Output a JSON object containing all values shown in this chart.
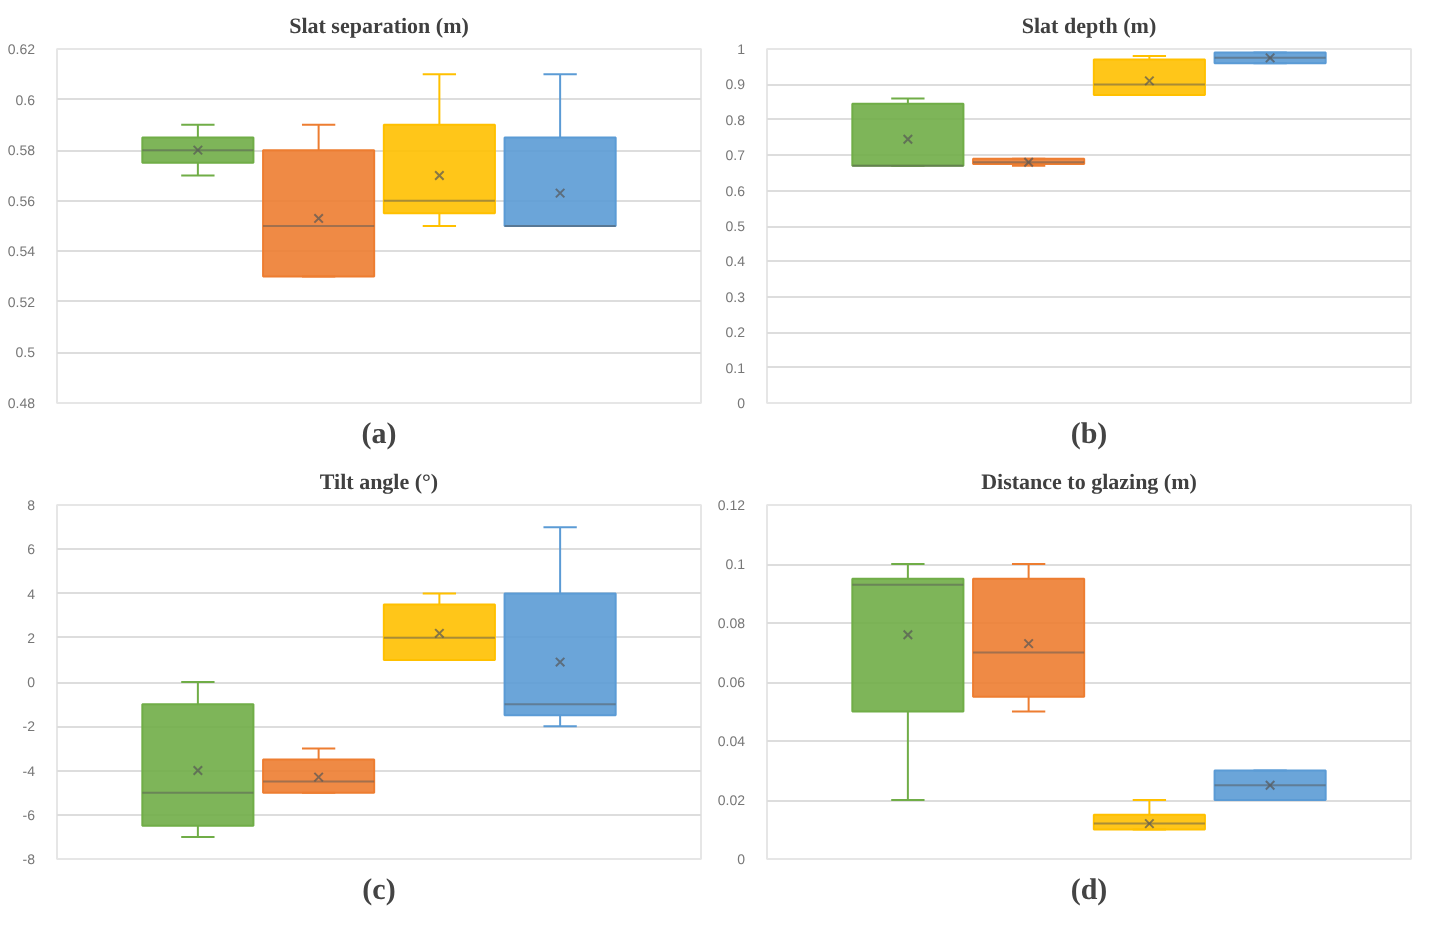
{
  "chart_data": [
    {
      "type": "box",
      "title": "Slat separation (m)",
      "xlabel": "(a)",
      "categories": [
        null
      ],
      "ylim": [
        0.48,
        0.62
      ],
      "yticks": [
        0.48,
        0.5,
        0.52,
        0.54,
        0.56,
        0.58,
        0.6,
        0.62
      ],
      "grid": "y",
      "tick_labels": "y",
      "series": [
        {
          "color": "#70ad47",
          "boxes": [
            {
              "low": 0.57,
              "q1": 0.575,
              "median": 0.58,
              "q3": 0.585,
              "high": 0.59,
              "mean": 0.58
            }
          ]
        },
        {
          "color": "#ed7d31",
          "boxes": [
            {
              "low": 0.53,
              "q1": 0.53,
              "median": 0.55,
              "q3": 0.58,
              "high": 0.59,
              "mean": 0.553
            }
          ]
        },
        {
          "color": "#ffc000",
          "boxes": [
            {
              "low": 0.55,
              "q1": 0.555,
              "median": 0.56,
              "q3": 0.59,
              "high": 0.61,
              "mean": 0.57
            }
          ]
        },
        {
          "color": "#5b9bd5",
          "boxes": [
            {
              "low": 0.55,
              "q1": 0.55,
              "median": 0.55,
              "q3": 0.585,
              "high": 0.61,
              "mean": 0.563
            }
          ]
        }
      ]
    },
    {
      "type": "box",
      "title": "Slat depth (m)",
      "xlabel": "(b)",
      "categories": [
        null
      ],
      "ylim": [
        0,
        1
      ],
      "yticks": [
        0,
        0.1,
        0.2,
        0.3,
        0.4,
        0.5,
        0.6,
        0.7,
        0.8,
        0.9,
        1
      ],
      "grid": "y",
      "tick_labels": "y",
      "series": [
        {
          "color": "#70ad47",
          "boxes": [
            {
              "low": 0.67,
              "q1": 0.67,
              "median": 0.67,
              "q3": 0.845,
              "high": 0.86,
              "mean": 0.745
            }
          ]
        },
        {
          "color": "#ed7d31",
          "boxes": [
            {
              "low": 0.67,
              "q1": 0.675,
              "median": 0.68,
              "q3": 0.69,
              "high": 0.69,
              "mean": 0.68
            }
          ]
        },
        {
          "color": "#ffc000",
          "boxes": [
            {
              "low": 0.87,
              "q1": 0.87,
              "median": 0.9,
              "q3": 0.97,
              "high": 0.98,
              "mean": 0.91
            }
          ]
        },
        {
          "color": "#5b9bd5",
          "boxes": [
            {
              "low": 0.96,
              "q1": 0.96,
              "median": 0.975,
              "q3": 0.99,
              "high": 0.99,
              "mean": 0.975
            }
          ]
        }
      ]
    },
    {
      "type": "box",
      "title": "Tilt angle (°)",
      "xlabel": "(c)",
      "categories": [
        null
      ],
      "ylim": [
        -8,
        8
      ],
      "yticks": [
        -8,
        -6,
        -4,
        -2,
        0,
        2,
        4,
        6,
        8
      ],
      "grid": "y",
      "tick_labels": "y",
      "series": [
        {
          "color": "#70ad47",
          "boxes": [
            {
              "low": -7,
              "q1": -6.5,
              "median": -5,
              "q3": -1,
              "high": 0,
              "mean": -4
            }
          ]
        },
        {
          "color": "#ed7d31",
          "boxes": [
            {
              "low": -5,
              "q1": -5,
              "median": -4.5,
              "q3": -3.5,
              "high": -3,
              "mean": -4.3
            }
          ]
        },
        {
          "color": "#ffc000",
          "boxes": [
            {
              "low": 1,
              "q1": 1,
              "median": 2,
              "q3": 3.5,
              "high": 4,
              "mean": 2.2
            }
          ]
        },
        {
          "color": "#5b9bd5",
          "boxes": [
            {
              "low": -2,
              "q1": -1.5,
              "median": -1,
              "q3": 4,
              "high": 7,
              "mean": 0.9
            }
          ]
        }
      ]
    },
    {
      "type": "box",
      "title": "Distance to glazing (m)",
      "xlabel": "(d)",
      "categories": [
        null
      ],
      "ylim": [
        0,
        0.12
      ],
      "yticks": [
        0,
        0.02,
        0.04,
        0.06,
        0.08,
        0.1,
        0.12
      ],
      "grid": "y",
      "tick_labels": "y",
      "series": [
        {
          "color": "#70ad47",
          "boxes": [
            {
              "low": 0.02,
              "q1": 0.05,
              "median": 0.093,
              "q3": 0.095,
              "high": 0.1,
              "mean": 0.076
            }
          ]
        },
        {
          "color": "#ed7d31",
          "boxes": [
            {
              "low": 0.05,
              "q1": 0.055,
              "median": 0.07,
              "q3": 0.095,
              "high": 0.1,
              "mean": 0.073
            }
          ]
        },
        {
          "color": "#ffc000",
          "boxes": [
            {
              "low": 0.01,
              "q1": 0.01,
              "median": 0.012,
              "q3": 0.015,
              "high": 0.02,
              "mean": 0.012
            }
          ]
        },
        {
          "color": "#5b9bd5",
          "boxes": [
            {
              "low": 0.02,
              "q1": 0.02,
              "median": 0.025,
              "q3": 0.03,
              "high": 0.03,
              "mean": 0.025
            }
          ]
        }
      ]
    }
  ]
}
